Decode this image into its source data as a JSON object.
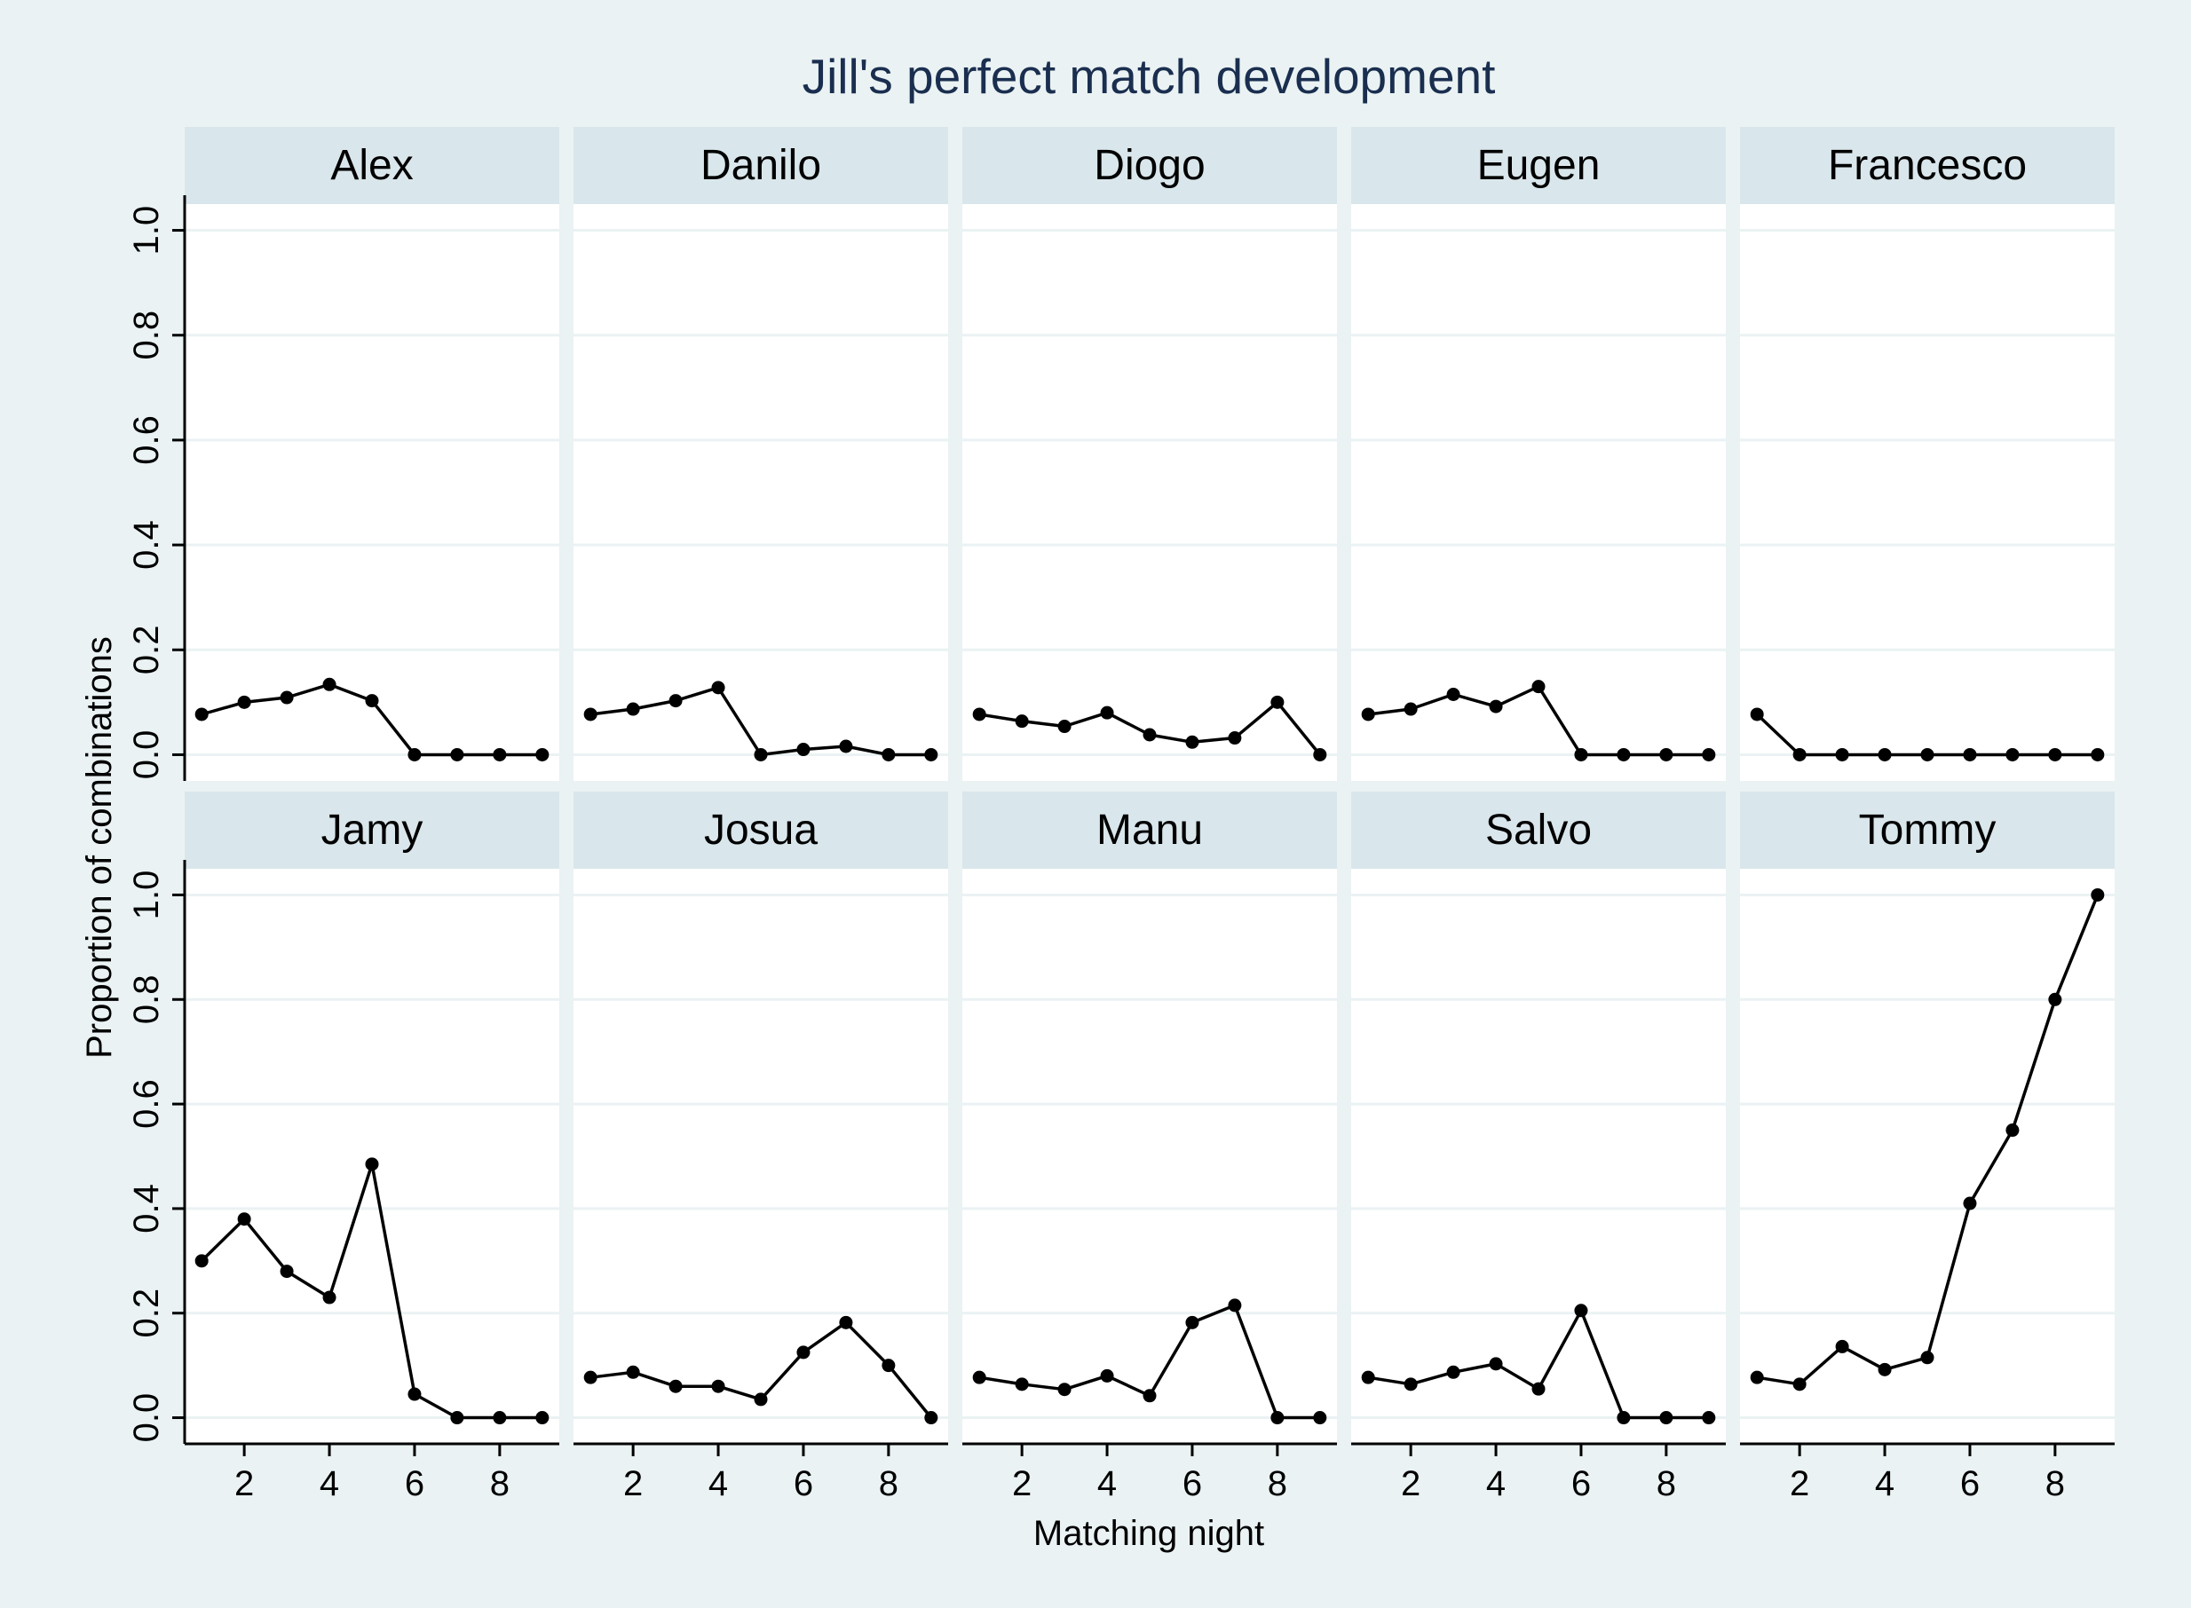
{
  "chart_data": {
    "type": "line",
    "title": "Jill's perfect match development",
    "xlabel": "Matching night",
    "ylabel": "Proportion of combinations",
    "xlim": [
      0.6,
      9.4
    ],
    "ylim": [
      -0.05,
      1.05
    ],
    "xticks": [
      2,
      4,
      6,
      8
    ],
    "yticks": [
      0.0,
      0.2,
      0.4,
      0.6,
      0.8,
      1.0
    ],
    "ytick_labels": [
      "0.0",
      "0.2",
      "0.4",
      "0.6",
      "0.8",
      "1.0"
    ],
    "grid": true,
    "x": [
      1,
      2,
      3,
      4,
      5,
      6,
      7,
      8,
      9
    ],
    "colors": {
      "background": "#eaf2f3",
      "strip": "#d9e6eb",
      "grid": "#eaf2f3",
      "line": "#000000",
      "title": "#1a2e4f"
    },
    "panels": [
      {
        "name": "Alex",
        "values": [
          0.077,
          0.1,
          0.109,
          0.134,
          0.103,
          0.0,
          0.0,
          0.0,
          0.0
        ]
      },
      {
        "name": "Danilo",
        "values": [
          0.077,
          0.087,
          0.103,
          0.128,
          0.0,
          0.01,
          0.016,
          0.0,
          0.0
        ]
      },
      {
        "name": "Diogo",
        "values": [
          0.077,
          0.064,
          0.054,
          0.08,
          0.038,
          0.024,
          0.032,
          0.1,
          0.0
        ]
      },
      {
        "name": "Eugen",
        "values": [
          0.077,
          0.087,
          0.115,
          0.092,
          0.13,
          0.0,
          0.0,
          0.0,
          0.0
        ]
      },
      {
        "name": "Francesco",
        "values": [
          0.077,
          0.0,
          0.0,
          0.0,
          0.0,
          0.0,
          0.0,
          0.0,
          0.0
        ]
      },
      {
        "name": "Jamy",
        "values": [
          0.3,
          0.38,
          0.28,
          0.23,
          0.485,
          0.045,
          0.0,
          0.0,
          0.0
        ]
      },
      {
        "name": "Josua",
        "values": [
          0.077,
          0.087,
          0.06,
          0.06,
          0.035,
          0.125,
          0.182,
          0.1,
          0.0
        ]
      },
      {
        "name": "Manu",
        "values": [
          0.077,
          0.064,
          0.054,
          0.08,
          0.042,
          0.182,
          0.215,
          0.0,
          0.0
        ]
      },
      {
        "name": "Salvo",
        "values": [
          0.077,
          0.064,
          0.087,
          0.103,
          0.055,
          0.205,
          0.0,
          0.0,
          0.0
        ]
      },
      {
        "name": "Tommy",
        "values": [
          0.077,
          0.064,
          0.136,
          0.092,
          0.115,
          0.41,
          0.55,
          0.8,
          1.0
        ]
      }
    ]
  }
}
